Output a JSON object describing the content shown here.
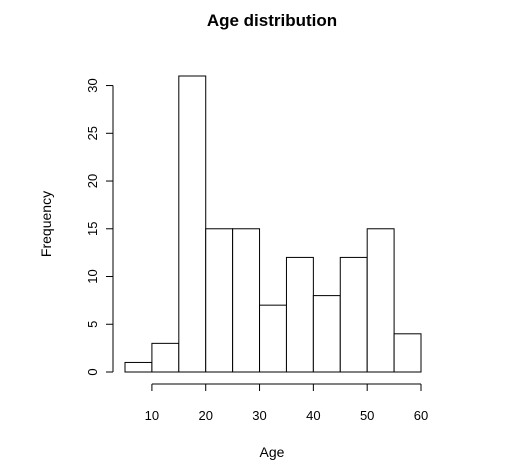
{
  "chart_data": {
    "type": "bar",
    "title": "Age distribution",
    "xlabel": "Age",
    "ylabel": "Frequency",
    "bin_edges": [
      5,
      10,
      15,
      20,
      25,
      30,
      35,
      40,
      45,
      50,
      55,
      60
    ],
    "values": [
      1,
      3,
      31,
      15,
      15,
      7,
      12,
      8,
      12,
      15,
      4
    ],
    "xlim": [
      5,
      60
    ],
    "ylim": [
      0,
      31
    ],
    "x_ticks": [
      10,
      20,
      30,
      40,
      50,
      60
    ],
    "y_ticks": [
      0,
      5,
      10,
      15,
      20,
      25,
      30
    ],
    "grid": false,
    "legend": "none"
  }
}
